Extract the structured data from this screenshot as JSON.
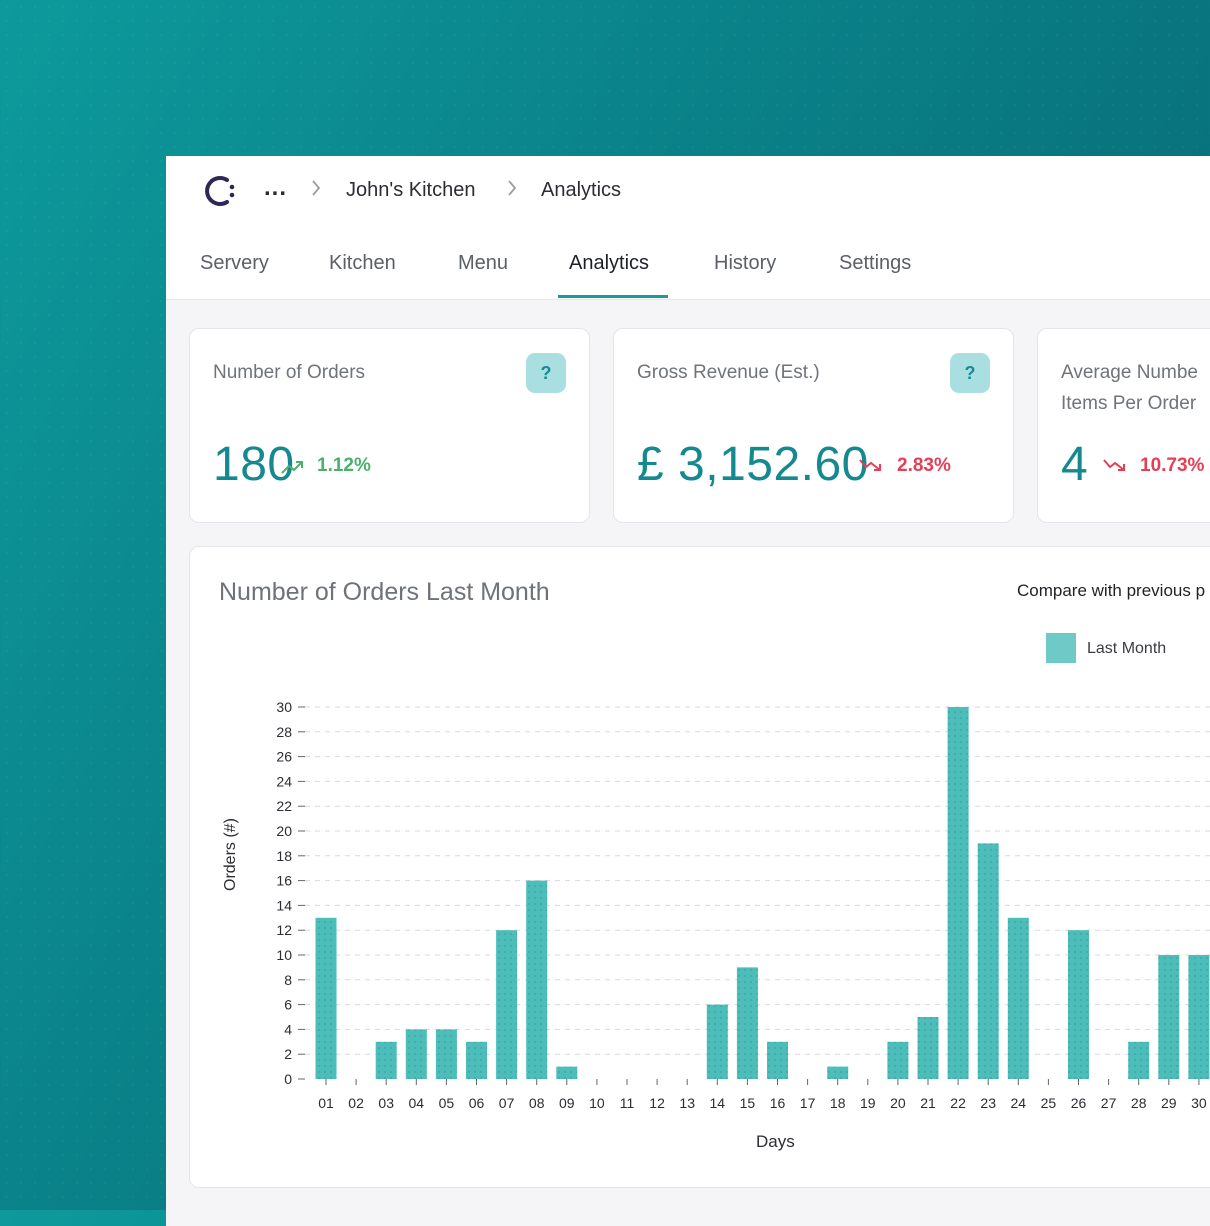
{
  "breadcrumb": {
    "ellipsis": "...",
    "items": [
      "John's Kitchen",
      "Analytics"
    ]
  },
  "tabs": [
    {
      "label": "Servery"
    },
    {
      "label": "Kitchen"
    },
    {
      "label": "Menu"
    },
    {
      "label": "Analytics",
      "active": true
    },
    {
      "label": "History"
    },
    {
      "label": "Settings"
    }
  ],
  "stats": [
    {
      "title": "Number of Orders",
      "help": "?",
      "value": "180",
      "trend": "1.12%",
      "direction": "up"
    },
    {
      "title": "Gross Revenue (Est.)",
      "help": "?",
      "value": "£ 3,152.60",
      "trend": "2.83%",
      "direction": "down"
    },
    {
      "title_line1": "Average Numbe",
      "title_line2": "Items Per Order",
      "value": "4",
      "trend": "10.73%",
      "direction": "down"
    }
  ],
  "chart_panel": {
    "title": "Number of Orders Last Month",
    "compare_label": "Compare with previous p"
  },
  "colors": {
    "accent": "#1a9a9c",
    "bar": "#4dbdba",
    "up": "#4cb06c",
    "down": "#e53e55"
  },
  "chart_data": {
    "type": "bar",
    "xlabel": "Days",
    "ylabel": "Orders (#)",
    "ylim": [
      0,
      30
    ],
    "yticks": [
      0,
      2,
      4,
      6,
      8,
      10,
      12,
      14,
      16,
      18,
      20,
      22,
      24,
      26,
      28,
      30
    ],
    "grid": true,
    "legend": {
      "placement": "top-right",
      "entries": [
        "Last Month"
      ]
    },
    "categories": [
      "01",
      "02",
      "03",
      "04",
      "05",
      "06",
      "07",
      "08",
      "09",
      "10",
      "11",
      "12",
      "13",
      "14",
      "15",
      "16",
      "17",
      "18",
      "19",
      "20",
      "21",
      "22",
      "23",
      "24",
      "25",
      "26",
      "27",
      "28",
      "29",
      "30"
    ],
    "series": [
      {
        "name": "Last Month",
        "values": [
          13,
          0,
          3,
          4,
          4,
          3,
          12,
          16,
          1,
          0,
          0,
          0,
          0,
          6,
          9,
          3,
          0,
          1,
          0,
          3,
          5,
          30,
          19,
          13,
          0,
          12,
          0,
          3,
          10,
          10
        ]
      }
    ]
  }
}
